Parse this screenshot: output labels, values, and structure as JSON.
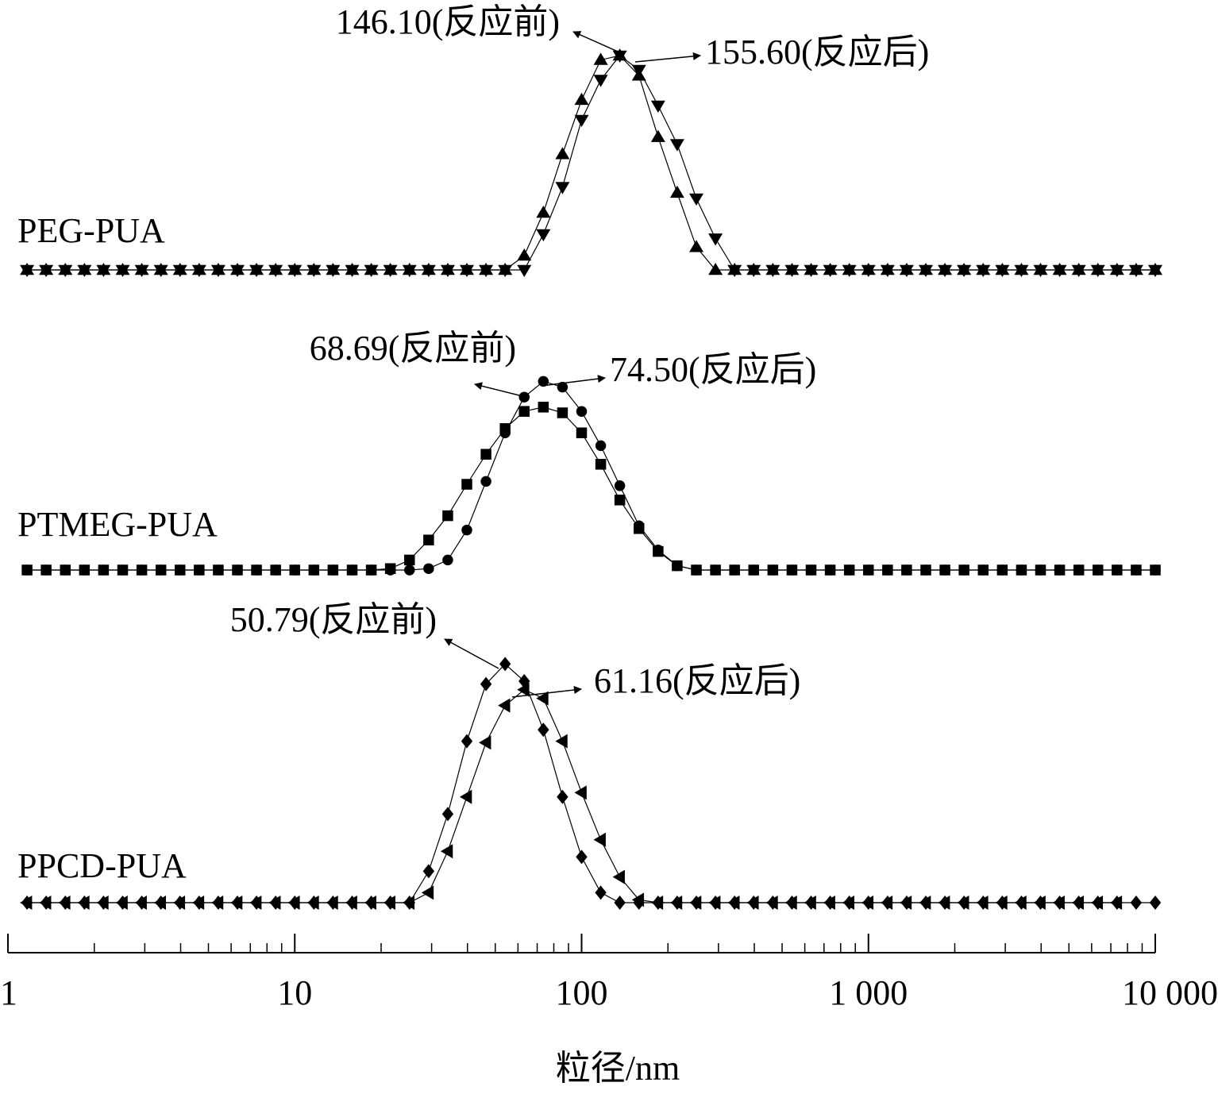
{
  "chart_data": {
    "type": "line",
    "x_scale": "log",
    "xlim": [
      1,
      10000
    ],
    "xticks": [
      1,
      10,
      100,
      {
        "value": 1000,
        "label": "1 000"
      },
      {
        "value": 10000,
        "label": "10 000"
      }
    ],
    "xminorticks": [
      2,
      3,
      4,
      5,
      6,
      7,
      8,
      9,
      20,
      30,
      40,
      50,
      60,
      70,
      80,
      90,
      200,
      300,
      400,
      500,
      600,
      700,
      800,
      900,
      2000,
      3000,
      4000,
      5000,
      6000,
      7000,
      8000,
      9000
    ],
    "xlabel": "粒径/nm",
    "x": [
      1.166,
      1.359,
      1.585,
      1.848,
      2.154,
      2.512,
      2.929,
      3.415,
      3.981,
      4.642,
      5.412,
      6.31,
      7.356,
      8.577,
      10,
      11.66,
      13.59,
      15.85,
      18.48,
      21.54,
      25.12,
      29.29,
      34.15,
      39.81,
      46.42,
      54.12,
      63.1,
      73.56,
      85.77,
      100,
      116.6,
      135.9,
      158.5,
      184.8,
      215.4,
      251.2,
      292.9,
      341.5,
      398.1,
      464.2,
      541.2,
      631,
      735.6,
      857.7,
      1000,
      1166,
      1359,
      1585,
      1848,
      2154,
      2512,
      2929,
      3415,
      3981,
      4642,
      5412,
      6310,
      7356,
      8577,
      10000
    ],
    "panels": [
      {
        "label": "PEG-PUA",
        "ylim": [
          0,
          20
        ],
        "series": [
          {
            "marker": "triangle-up",
            "color": "#000000",
            "values": [
              0,
              0,
              0,
              0,
              0,
              0,
              0,
              0,
              0,
              0,
              0,
              0,
              0,
              0,
              0,
              0,
              0,
              0,
              0,
              0,
              0,
              0,
              0,
              0,
              0,
              0,
              1,
              4,
              8.1,
              11.9,
              14.7,
              15,
              13.6,
              9.3,
              5.4,
              1.6,
              0,
              0,
              0,
              0,
              0,
              0,
              0,
              0,
              0,
              0,
              0,
              0,
              0,
              0,
              0,
              0,
              0,
              0,
              0,
              0,
              0,
              0,
              0,
              0
            ]
          },
          {
            "marker": "triangle-down",
            "color": "#000000",
            "values": [
              0,
              0,
              0,
              0,
              0,
              0,
              0,
              0,
              0,
              0,
              0,
              0,
              0,
              0,
              0,
              0,
              0,
              0,
              0,
              0,
              0,
              0,
              0,
              0,
              0,
              0,
              0,
              2.5,
              5.8,
              10.5,
              13.3,
              15,
              14,
              11.5,
              8.8,
              5,
              2.2,
              0,
              0,
              0,
              0,
              0,
              0,
              0,
              0,
              0,
              0,
              0,
              0,
              0,
              0,
              0,
              0,
              0,
              0,
              0,
              0,
              0,
              0,
              0
            ]
          }
        ],
        "annotations": [
          "146.10(反应前)",
          "155.60(反应后)"
        ]
      },
      {
        "label": "PTMEG-PUA",
        "ylim": [
          0,
          20
        ],
        "series": [
          {
            "marker": "square",
            "color": "#000000",
            "values": [
              0,
              0,
              0,
              0,
              0,
              0,
              0,
              0,
              0,
              0,
              0,
              0,
              0,
              0,
              0,
              0,
              0,
              0,
              0,
              0.1,
              0.7,
              2.1,
              3.8,
              6,
              8.1,
              9.9,
              11.1,
              11.4,
              11,
              9.6,
              7.4,
              4.9,
              2.9,
              1.3,
              0.3,
              0,
              0,
              0,
              0,
              0,
              0,
              0,
              0,
              0,
              0,
              0,
              0,
              0,
              0,
              0,
              0,
              0,
              0,
              0,
              0,
              0,
              0,
              0,
              0,
              0
            ]
          },
          {
            "marker": "circle",
            "color": "#000000",
            "values": [
              0,
              0,
              0,
              0,
              0,
              0,
              0,
              0,
              0,
              0,
              0,
              0,
              0,
              0,
              0,
              0,
              0,
              0,
              0,
              0,
              0,
              0.1,
              0.7,
              2.8,
              6.2,
              9.6,
              12.1,
              13.2,
              12.8,
              11.1,
              8.7,
              5.9,
              3.1,
              1.4,
              0.3,
              0,
              0,
              0,
              0,
              0,
              0,
              0,
              0,
              0,
              0,
              0,
              0,
              0,
              0,
              0,
              0,
              0,
              0,
              0,
              0,
              0,
              0,
              0,
              0,
              0
            ]
          }
        ],
        "annotations": [
          "68.69(反应前)",
          "74.50(反应后)"
        ]
      },
      {
        "label": "PPCD-PUA",
        "ylim": [
          0,
          20
        ],
        "series": [
          {
            "marker": "diamond",
            "color": "#000000",
            "values": [
              0,
              0,
              0,
              0,
              0,
              0,
              0,
              0,
              0,
              0,
              0,
              0,
              0,
              0,
              0,
              0,
              0,
              0,
              0,
              0,
              0,
              2.2,
              6.2,
              11.3,
              15.3,
              16.7,
              15.5,
              12.1,
              7.4,
              3.2,
              0.7,
              0,
              0,
              0,
              0,
              0,
              0,
              0,
              0,
              0,
              0,
              0,
              0,
              0,
              0,
              0,
              0,
              0,
              0,
              0,
              0,
              0,
              0,
              0,
              0,
              0,
              0,
              0,
              0,
              0
            ]
          },
          {
            "marker": "triangle-left",
            "color": "#000000",
            "values": [
              0,
              0,
              0,
              0,
              0,
              0,
              0,
              0,
              0,
              0,
              0,
              0,
              0,
              0,
              0,
              0,
              0,
              0,
              0,
              0,
              0,
              0.7,
              3.6,
              7.4,
              11.2,
              13.8,
              14.9,
              14.3,
              11.3,
              7.7,
              4.4,
              1.8,
              0.2,
              0,
              0,
              0,
              0,
              0,
              0,
              0,
              0,
              0,
              0,
              0,
              0,
              0,
              0,
              0,
              0,
              0,
              0,
              0,
              0,
              0,
              0,
              0,
              0,
              0
            ]
          }
        ],
        "annotations": [
          "50.79(反应前)",
          "61.16(反应后)"
        ]
      }
    ]
  }
}
